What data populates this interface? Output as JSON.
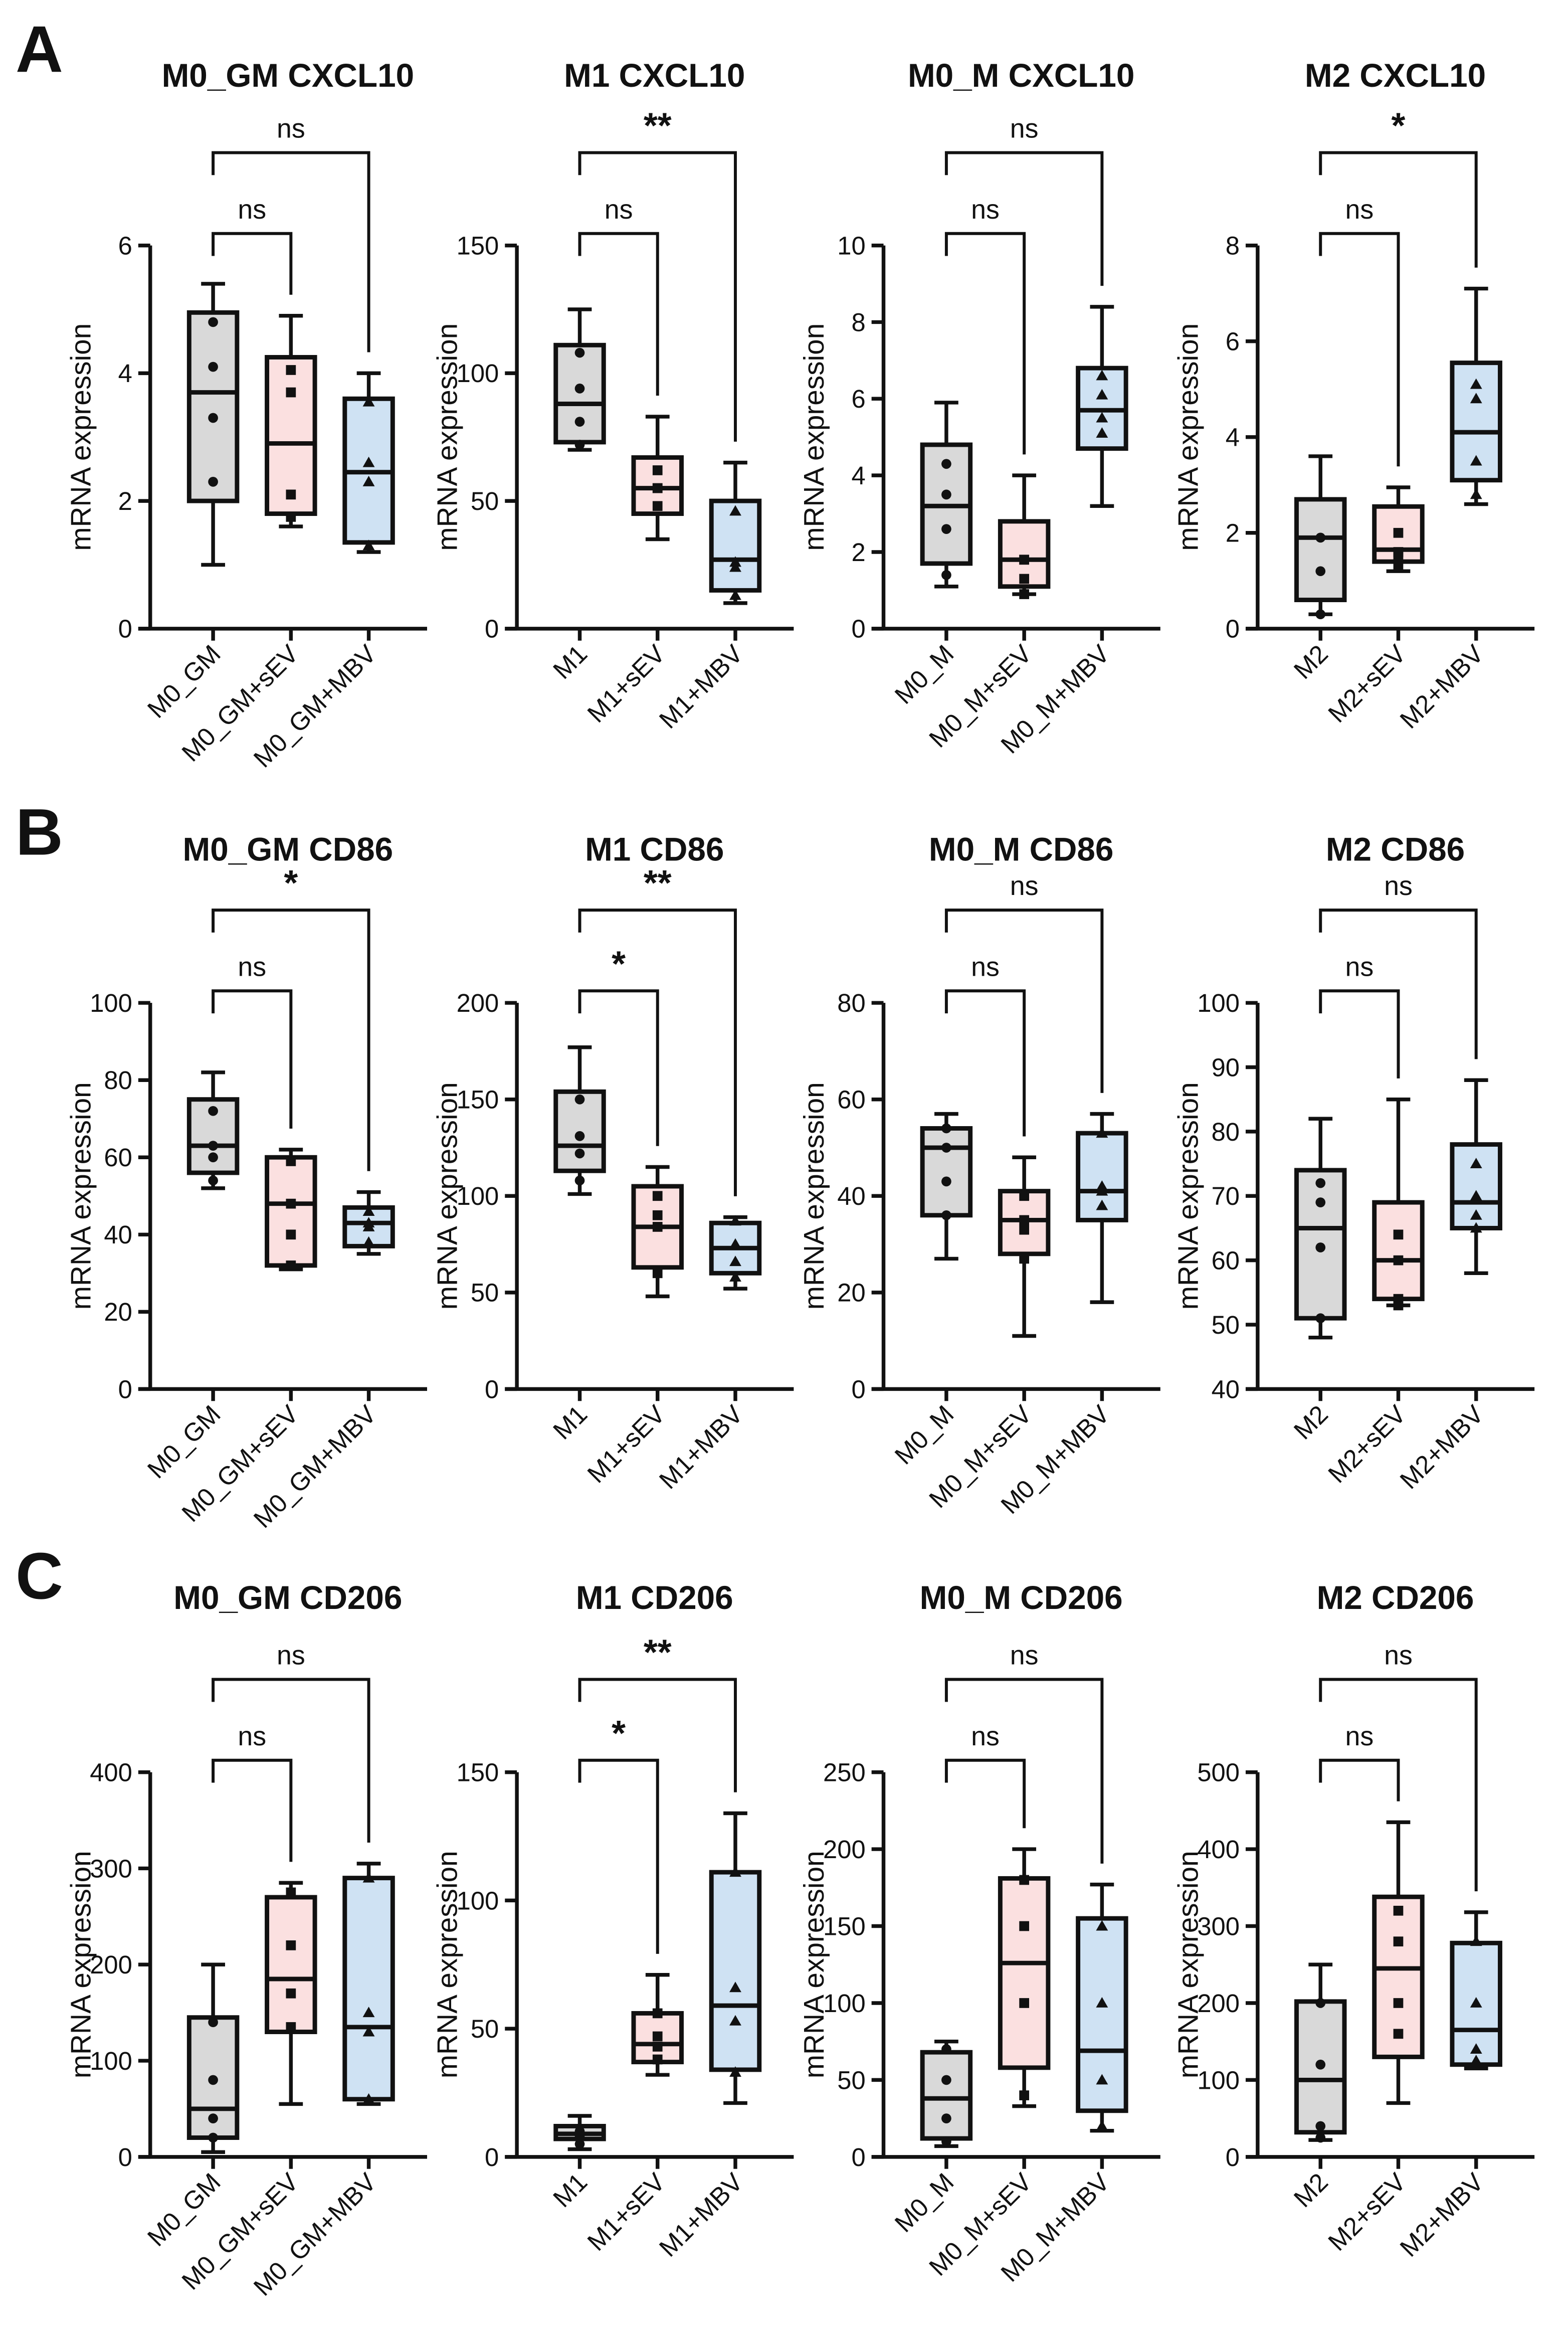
{
  "colors": {
    "control": "#d9d9d9",
    "sev": "#fbe0e0",
    "mbv": "#cfe2f3",
    "stroke": "#111111"
  },
  "ylabel": "mRNA expression",
  "row_labels": [
    "A",
    "B",
    "C"
  ],
  "chart_data": [
    {
      "type": "box",
      "title": "M0_GM CXCL10",
      "ylim": [
        0,
        6
      ],
      "ticks": [
        0,
        2,
        4,
        6
      ],
      "groups": [
        {
          "name": "M0_GM",
          "marker": "circle",
          "min": 1.0,
          "q1": 2.0,
          "median": 3.7,
          "q3": 4.95,
          "max": 5.4,
          "points": [
            4.8,
            4.1,
            3.3,
            2.3
          ]
        },
        {
          "name": "M0_GM+sEV",
          "marker": "square",
          "min": 1.6,
          "q1": 1.8,
          "median": 2.9,
          "q3": 4.25,
          "max": 4.9,
          "points": [
            4.05,
            3.7,
            2.1,
            1.75
          ]
        },
        {
          "name": "M0_GM+MBV",
          "marker": "triangle",
          "min": 1.2,
          "q1": 1.35,
          "median": 2.45,
          "q3": 3.6,
          "max": 4.0,
          "points": [
            3.55,
            2.6,
            2.3,
            1.3
          ]
        }
      ],
      "comparisons": [
        {
          "pair": [
            0,
            1
          ],
          "label": "ns"
        },
        {
          "pair": [
            0,
            2
          ],
          "label": "ns"
        }
      ]
    },
    {
      "type": "box",
      "title": "M1 CXCL10",
      "ylim": [
        0,
        150
      ],
      "ticks": [
        0,
        50,
        100,
        150
      ],
      "groups": [
        {
          "name": "M1",
          "marker": "circle",
          "min": 70,
          "q1": 73,
          "median": 88,
          "q3": 111,
          "max": 125,
          "points": [
            108,
            94,
            81,
            72
          ]
        },
        {
          "name": "M1+sEV",
          "marker": "square",
          "min": 35,
          "q1": 45,
          "median": 55,
          "q3": 67,
          "max": 83,
          "points": [
            62,
            55,
            55,
            48
          ]
        },
        {
          "name": "M1+MBV",
          "marker": "triangle",
          "min": 10,
          "q1": 15,
          "median": 27,
          "q3": 50,
          "max": 65,
          "points": [
            46,
            26,
            24,
            13
          ]
        }
      ],
      "comparisons": [
        {
          "pair": [
            0,
            1
          ],
          "label": "ns"
        },
        {
          "pair": [
            0,
            2
          ],
          "label": "**"
        }
      ]
    },
    {
      "type": "box",
      "title": "M0_M CXCL10",
      "ylim": [
        0,
        10
      ],
      "ticks": [
        0,
        2,
        4,
        6,
        8,
        10
      ],
      "groups": [
        {
          "name": "M0_M",
          "marker": "circle",
          "min": 1.1,
          "q1": 1.7,
          "median": 3.2,
          "q3": 4.8,
          "max": 5.9,
          "points": [
            4.3,
            3.5,
            2.6,
            1.4
          ]
        },
        {
          "name": "M0_M+sEV",
          "marker": "square",
          "min": 0.9,
          "q1": 1.1,
          "median": 1.8,
          "q3": 2.8,
          "max": 4.0,
          "points": [
            1.8,
            1.8,
            1.3,
            0.9
          ]
        },
        {
          "name": "M0_M+MBV",
          "marker": "triangle",
          "min": 3.2,
          "q1": 4.7,
          "median": 5.7,
          "q3": 6.8,
          "max": 8.4,
          "points": [
            6.6,
            6.1,
            5.5,
            5.1
          ]
        }
      ],
      "comparisons": [
        {
          "pair": [
            0,
            1
          ],
          "label": "ns"
        },
        {
          "pair": [
            0,
            2
          ],
          "label": "ns"
        }
      ]
    },
    {
      "type": "box",
      "title": "M2 CXCL10",
      "ylim": [
        0,
        8
      ],
      "ticks": [
        0,
        2,
        4,
        6,
        8
      ],
      "groups": [
        {
          "name": "M2",
          "marker": "circle",
          "min": 0.3,
          "q1": 0.6,
          "median": 1.9,
          "q3": 2.7,
          "max": 3.6,
          "points": [
            1.9,
            1.9,
            1.2,
            0.3
          ]
        },
        {
          "name": "M2+sEV",
          "marker": "square",
          "min": 1.2,
          "q1": 1.4,
          "median": 1.65,
          "q3": 2.55,
          "max": 2.95,
          "points": [
            2.0,
            1.6,
            1.5,
            1.3
          ]
        },
        {
          "name": "M2+MBV",
          "marker": "triangle",
          "min": 2.6,
          "q1": 3.1,
          "median": 4.1,
          "q3": 5.55,
          "max": 7.1,
          "points": [
            5.1,
            4.8,
            3.5,
            2.8
          ]
        }
      ],
      "comparisons": [
        {
          "pair": [
            0,
            1
          ],
          "label": "ns"
        },
        {
          "pair": [
            0,
            2
          ],
          "label": "*"
        }
      ]
    },
    {
      "type": "box",
      "title": "M0_GM CD86",
      "ylim": [
        0,
        100
      ],
      "ticks": [
        0,
        20,
        40,
        60,
        80,
        100
      ],
      "groups": [
        {
          "name": "M0_GM",
          "marker": "circle",
          "min": 52,
          "q1": 56,
          "median": 63,
          "q3": 75,
          "max": 82,
          "points": [
            72,
            63,
            60,
            54
          ]
        },
        {
          "name": "M0_GM+sEV",
          "marker": "square",
          "min": 31,
          "q1": 32,
          "median": 48,
          "q3": 60,
          "max": 62,
          "points": [
            59,
            48,
            40,
            32
          ]
        },
        {
          "name": "M0_GM+MBV",
          "marker": "triangle",
          "min": 35,
          "q1": 37,
          "median": 43,
          "q3": 47,
          "max": 51,
          "points": [
            46,
            43,
            42,
            38
          ]
        }
      ],
      "comparisons": [
        {
          "pair": [
            0,
            1
          ],
          "label": "ns"
        },
        {
          "pair": [
            0,
            2
          ],
          "label": "*"
        }
      ]
    },
    {
      "type": "box",
      "title": "M1 CD86",
      "ylim": [
        0,
        200
      ],
      "ticks": [
        0,
        50,
        100,
        150,
        200
      ],
      "groups": [
        {
          "name": "M1",
          "marker": "circle",
          "min": 101,
          "q1": 113,
          "median": 126,
          "q3": 154,
          "max": 177,
          "points": [
            150,
            131,
            122,
            108
          ]
        },
        {
          "name": "M1+sEV",
          "marker": "square",
          "min": 48,
          "q1": 63,
          "median": 84,
          "q3": 105,
          "max": 115,
          "points": [
            100,
            90,
            84,
            60
          ]
        },
        {
          "name": "M1+MBV",
          "marker": "triangle",
          "min": 52,
          "q1": 60,
          "median": 73,
          "q3": 86,
          "max": 89,
          "points": [
            87,
            75,
            66,
            58
          ]
        }
      ],
      "comparisons": [
        {
          "pair": [
            0,
            1
          ],
          "label": "*"
        },
        {
          "pair": [
            0,
            2
          ],
          "label": "**"
        }
      ]
    },
    {
      "type": "box",
      "title": "M0_M CD86",
      "ylim": [
        0,
        80
      ],
      "ticks": [
        0,
        20,
        40,
        60,
        80
      ],
      "groups": [
        {
          "name": "M0_M",
          "marker": "circle",
          "min": 27,
          "q1": 36,
          "median": 50,
          "q3": 54,
          "max": 57,
          "points": [
            54,
            50,
            43,
            36
          ]
        },
        {
          "name": "M0_M+sEV",
          "marker": "square",
          "min": 11,
          "q1": 28,
          "median": 35,
          "q3": 41,
          "max": 48,
          "points": [
            40,
            35,
            33,
            27
          ]
        },
        {
          "name": "M0_M+MBV",
          "marker": "triangle",
          "min": 18,
          "q1": 35,
          "median": 41,
          "q3": 53,
          "max": 57,
          "points": [
            53,
            42,
            41,
            38
          ]
        }
      ],
      "comparisons": [
        {
          "pair": [
            0,
            1
          ],
          "label": "ns"
        },
        {
          "pair": [
            0,
            2
          ],
          "label": "ns"
        }
      ]
    },
    {
      "type": "box",
      "title": "M2 CD86",
      "ylim": [
        40,
        100
      ],
      "ticks": [
        40,
        50,
        60,
        70,
        80,
        90,
        100
      ],
      "groups": [
        {
          "name": "M2",
          "marker": "circle",
          "min": 48,
          "q1": 51,
          "median": 65,
          "q3": 74,
          "max": 82,
          "points": [
            72,
            69,
            62,
            51
          ]
        },
        {
          "name": "M2+sEV",
          "marker": "square",
          "min": 53,
          "q1": 54,
          "median": 60,
          "q3": 69,
          "max": 85,
          "points": [
            64,
            60,
            54,
            53
          ]
        },
        {
          "name": "M2+MBV",
          "marker": "triangle",
          "min": 58,
          "q1": 65,
          "median": 69,
          "q3": 78,
          "max": 88,
          "points": [
            75,
            70,
            67,
            65
          ]
        }
      ],
      "comparisons": [
        {
          "pair": [
            0,
            1
          ],
          "label": "ns"
        },
        {
          "pair": [
            0,
            2
          ],
          "label": "ns"
        }
      ]
    },
    {
      "type": "box",
      "title": "M0_GM CD206",
      "ylim": [
        0,
        400
      ],
      "ticks": [
        0,
        100,
        200,
        300,
        400
      ],
      "groups": [
        {
          "name": "M0_GM",
          "marker": "circle",
          "min": 5,
          "q1": 20,
          "median": 50,
          "q3": 145,
          "max": 200,
          "points": [
            140,
            80,
            40,
            20
          ]
        },
        {
          "name": "M0_GM+sEV",
          "marker": "square",
          "min": 55,
          "q1": 130,
          "median": 185,
          "q3": 270,
          "max": 285,
          "points": [
            275,
            220,
            170,
            135
          ]
        },
        {
          "name": "M0_GM+MBV",
          "marker": "triangle",
          "min": 55,
          "q1": 60,
          "median": 135,
          "q3": 290,
          "max": 305,
          "points": [
            290,
            150,
            130,
            60
          ]
        }
      ],
      "comparisons": [
        {
          "pair": [
            0,
            1
          ],
          "label": "ns"
        },
        {
          "pair": [
            0,
            2
          ],
          "label": "ns"
        }
      ]
    },
    {
      "type": "box",
      "title": "M1 CD206",
      "ylim": [
        0,
        150
      ],
      "ticks": [
        0,
        50,
        100,
        150
      ],
      "groups": [
        {
          "name": "M1",
          "marker": "circle",
          "min": 3,
          "q1": 7,
          "median": 9,
          "q3": 12,
          "max": 16,
          "points": [
            10,
            9,
            8,
            5
          ]
        },
        {
          "name": "M1+sEV",
          "marker": "square",
          "min": 32,
          "q1": 37,
          "median": 44,
          "q3": 56,
          "max": 71,
          "points": [
            56,
            47,
            43,
            38
          ]
        },
        {
          "name": "M1+MBV",
          "marker": "triangle",
          "min": 21,
          "q1": 34,
          "median": 59,
          "q3": 111,
          "max": 134,
          "points": [
            111,
            66,
            53,
            33
          ]
        }
      ],
      "comparisons": [
        {
          "pair": [
            0,
            1
          ],
          "label": "*"
        },
        {
          "pair": [
            0,
            2
          ],
          "label": "**"
        }
      ]
    },
    {
      "type": "box",
      "title": "M0_M CD206",
      "ylim": [
        0,
        250
      ],
      "ticks": [
        0,
        50,
        100,
        150,
        200,
        250
      ],
      "groups": [
        {
          "name": "M0_M",
          "marker": "circle",
          "min": 7,
          "q1": 12,
          "median": 38,
          "q3": 68,
          "max": 75,
          "points": [
            70,
            50,
            25,
            10
          ]
        },
        {
          "name": "M0_M+sEV",
          "marker": "square",
          "min": 33,
          "q1": 58,
          "median": 126,
          "q3": 181,
          "max": 200,
          "points": [
            180,
            150,
            100,
            40
          ]
        },
        {
          "name": "M0_M+MBV",
          "marker": "triangle",
          "min": 17,
          "q1": 30,
          "median": 69,
          "q3": 155,
          "max": 177,
          "points": [
            150,
            100,
            50,
            20
          ]
        }
      ],
      "comparisons": [
        {
          "pair": [
            0,
            1
          ],
          "label": "ns"
        },
        {
          "pair": [
            0,
            2
          ],
          "label": "ns"
        }
      ]
    },
    {
      "type": "box",
      "title": "M2 CD206",
      "ylim": [
        0,
        500
      ],
      "ticks": [
        0,
        100,
        200,
        300,
        400,
        500
      ],
      "groups": [
        {
          "name": "M2",
          "marker": "circle",
          "min": 22,
          "q1": 32,
          "median": 100,
          "q3": 202,
          "max": 250,
          "points": [
            200,
            120,
            40,
            25
          ]
        },
        {
          "name": "M2+sEV",
          "marker": "square",
          "min": 70,
          "q1": 130,
          "median": 245,
          "q3": 338,
          "max": 435,
          "points": [
            320,
            280,
            200,
            160
          ]
        },
        {
          "name": "M2+MBV",
          "marker": "triangle",
          "min": 115,
          "q1": 120,
          "median": 165,
          "q3": 278,
          "max": 318,
          "points": [
            280,
            200,
            140,
            125
          ]
        }
      ],
      "comparisons": [
        {
          "pair": [
            0,
            1
          ],
          "label": "ns"
        },
        {
          "pair": [
            0,
            2
          ],
          "label": "ns"
        }
      ]
    }
  ]
}
